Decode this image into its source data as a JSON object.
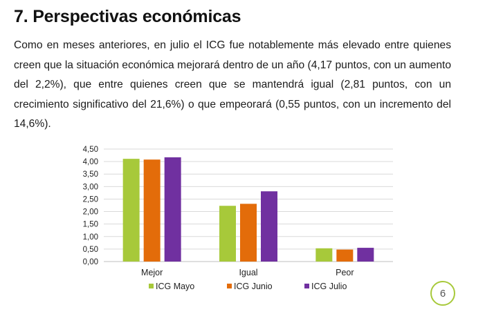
{
  "heading": "7. Perspectivas económicas",
  "paragraph": "Como en meses anteriores, en julio el ICG fue notablemente más elevado entre quienes creen que la situación económica mejorará dentro de un año (4,17 puntos, con un aumento del 2,2%), que entre quienes creen que se mantendrá igual (2,81 puntos, con un crecimiento significativo del 21,6%) o que empeorará (0,55 puntos, con un incremento del 14,6%).",
  "page_number": "6",
  "chart_data": {
    "type": "bar",
    "categories": [
      "Mejor",
      "Igual",
      "Peor"
    ],
    "series": [
      {
        "name": "ICG Mayo",
        "color": "#a7c93a",
        "values": [
          4.11,
          2.23,
          0.53
        ]
      },
      {
        "name": "ICG Junio",
        "color": "#e36c0a",
        "values": [
          4.08,
          2.31,
          0.48
        ]
      },
      {
        "name": "ICG Julio",
        "color": "#7030a0",
        "values": [
          4.17,
          2.81,
          0.55
        ]
      }
    ],
    "ylim": [
      0,
      4.5
    ],
    "y_ticks": [
      "0,00",
      "0,50",
      "1,00",
      "1,50",
      "2,00",
      "2,50",
      "3,00",
      "3,50",
      "4,00",
      "4,50"
    ],
    "grid": true,
    "legend_position": "bottom"
  }
}
